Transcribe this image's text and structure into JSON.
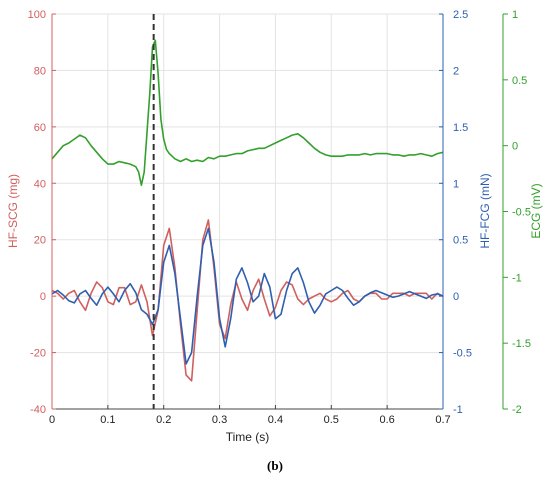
{
  "chart_data": {
    "type": "line",
    "xlabel": "Time (s)",
    "caption": "(b)",
    "xlim": [
      0,
      0.7
    ],
    "x_ticks": [
      "0",
      "0.1",
      "0.2",
      "0.3",
      "0.4",
      "0.5",
      "0.6",
      "0.7"
    ],
    "grid": true,
    "marker_line_x": 0.182,
    "colors": {
      "scg": "#d0605e",
      "fcg": "#2e5fb0",
      "ecg": "#33a02c",
      "marker": "#333333"
    },
    "axes": {
      "scg": {
        "label": "HF-SCG (mg)",
        "ylim": [
          -40,
          100
        ],
        "ticks": [
          "-40",
          "-20",
          "0",
          "20",
          "40",
          "60",
          "80",
          "100"
        ]
      },
      "fcg": {
        "label": "HF-FCG (mN)",
        "ylim": [
          -1,
          2.5
        ],
        "ticks": [
          "-1",
          "-0.5",
          "0",
          "0.5",
          "1",
          "1.5",
          "2",
          "2.5"
        ]
      },
      "ecg": {
        "label": "ECG (mV)",
        "ylim": [
          -2,
          1
        ],
        "ticks": [
          "-2",
          "-1.5",
          "-1",
          "-0.5",
          "0",
          "0.5",
          "1"
        ]
      }
    },
    "series": [
      {
        "axis": "scg",
        "x": [
          0,
          0.01,
          0.02,
          0.03,
          0.04,
          0.05,
          0.06,
          0.07,
          0.08,
          0.09,
          0.1,
          0.11,
          0.12,
          0.13,
          0.14,
          0.15,
          0.16,
          0.17,
          0.18,
          0.19,
          0.2,
          0.21,
          0.22,
          0.23,
          0.24,
          0.25,
          0.26,
          0.27,
          0.28,
          0.29,
          0.3,
          0.31,
          0.32,
          0.33,
          0.34,
          0.35,
          0.36,
          0.37,
          0.38,
          0.39,
          0.4,
          0.41,
          0.42,
          0.43,
          0.44,
          0.45,
          0.46,
          0.47,
          0.48,
          0.49,
          0.5,
          0.51,
          0.52,
          0.53,
          0.54,
          0.55,
          0.56,
          0.57,
          0.58,
          0.59,
          0.6,
          0.61,
          0.62,
          0.63,
          0.64,
          0.65,
          0.66,
          0.67,
          0.68,
          0.69,
          0.7
        ],
        "values": [
          2,
          1,
          -1,
          1,
          2,
          -2,
          -5,
          1,
          5,
          3,
          -2,
          -3,
          3,
          3,
          -3,
          -2,
          4,
          -2,
          -14,
          -5,
          18,
          24,
          10,
          -10,
          -28,
          -30,
          -5,
          20,
          27,
          10,
          -10,
          -15,
          -3,
          5,
          -1,
          -5,
          2,
          6,
          -1,
          -7,
          -4,
          2,
          5,
          4,
          -1,
          -3,
          -1,
          0,
          1,
          -1,
          -2,
          -1,
          1,
          2,
          -1,
          -2,
          0,
          1,
          1,
          -1,
          -1,
          1,
          1,
          1,
          0,
          1,
          1,
          1,
          -1,
          1,
          0
        ]
      },
      {
        "axis": "fcg",
        "x": [
          0,
          0.01,
          0.02,
          0.03,
          0.04,
          0.05,
          0.06,
          0.07,
          0.08,
          0.09,
          0.1,
          0.11,
          0.12,
          0.13,
          0.14,
          0.15,
          0.16,
          0.17,
          0.18,
          0.19,
          0.2,
          0.21,
          0.22,
          0.23,
          0.24,
          0.25,
          0.26,
          0.27,
          0.28,
          0.29,
          0.3,
          0.31,
          0.32,
          0.33,
          0.34,
          0.35,
          0.36,
          0.37,
          0.38,
          0.39,
          0.4,
          0.41,
          0.42,
          0.43,
          0.44,
          0.45,
          0.46,
          0.47,
          0.48,
          0.49,
          0.5,
          0.51,
          0.52,
          0.53,
          0.54,
          0.55,
          0.56,
          0.57,
          0.58,
          0.59,
          0.6,
          0.61,
          0.62,
          0.63,
          0.64,
          0.65,
          0.66,
          0.67,
          0.68,
          0.69,
          0.7
        ],
        "values": [
          0.02,
          0.05,
          0.01,
          -0.04,
          -0.06,
          0.02,
          0.05,
          -0.02,
          -0.08,
          0.02,
          0.08,
          0.02,
          -0.05,
          0.05,
          0.11,
          0.03,
          -0.12,
          -0.16,
          -0.25,
          -0.12,
          0.3,
          0.45,
          0.2,
          -0.2,
          -0.6,
          -0.5,
          0.0,
          0.45,
          0.6,
          0.3,
          -0.2,
          -0.45,
          -0.2,
          0.15,
          0.25,
          0.12,
          -0.05,
          0.0,
          0.2,
          0.08,
          -0.2,
          -0.16,
          0.05,
          0.2,
          0.25,
          0.12,
          -0.05,
          -0.15,
          -0.08,
          0.02,
          0.05,
          0.08,
          0.05,
          -0.02,
          -0.08,
          -0.05,
          0.0,
          0.03,
          0.05,
          0.03,
          0.01,
          -0.01,
          0.0,
          0.02,
          0.04,
          0.02,
          0.0,
          -0.02,
          0.01,
          0.02,
          0.0
        ]
      },
      {
        "axis": "ecg",
        "x": [
          0,
          0.01,
          0.02,
          0.03,
          0.04,
          0.05,
          0.06,
          0.07,
          0.08,
          0.09,
          0.1,
          0.11,
          0.12,
          0.13,
          0.14,
          0.15,
          0.155,
          0.16,
          0.165,
          0.17,
          0.175,
          0.18,
          0.185,
          0.19,
          0.195,
          0.2,
          0.205,
          0.21,
          0.22,
          0.23,
          0.24,
          0.25,
          0.26,
          0.27,
          0.28,
          0.29,
          0.3,
          0.31,
          0.32,
          0.33,
          0.34,
          0.35,
          0.36,
          0.37,
          0.38,
          0.39,
          0.4,
          0.41,
          0.42,
          0.43,
          0.44,
          0.45,
          0.46,
          0.47,
          0.48,
          0.49,
          0.5,
          0.51,
          0.52,
          0.53,
          0.54,
          0.55,
          0.56,
          0.57,
          0.58,
          0.59,
          0.6,
          0.61,
          0.62,
          0.63,
          0.64,
          0.65,
          0.66,
          0.67,
          0.68,
          0.69,
          0.7
        ],
        "values": [
          -0.1,
          -0.05,
          0.0,
          0.02,
          0.05,
          0.08,
          0.06,
          0.0,
          -0.05,
          -0.1,
          -0.14,
          -0.14,
          -0.12,
          -0.13,
          -0.14,
          -0.16,
          -0.2,
          -0.3,
          -0.2,
          0.1,
          0.4,
          0.75,
          0.8,
          0.55,
          0.2,
          0.05,
          -0.03,
          -0.06,
          -0.1,
          -0.12,
          -0.1,
          -0.12,
          -0.11,
          -0.12,
          -0.09,
          -0.1,
          -0.08,
          -0.08,
          -0.07,
          -0.06,
          -0.06,
          -0.04,
          -0.03,
          -0.02,
          -0.02,
          0.0,
          0.02,
          0.04,
          0.06,
          0.08,
          0.09,
          0.06,
          0.02,
          -0.02,
          -0.05,
          -0.07,
          -0.08,
          -0.08,
          -0.08,
          -0.07,
          -0.07,
          -0.07,
          -0.06,
          -0.07,
          -0.06,
          -0.06,
          -0.06,
          -0.07,
          -0.07,
          -0.08,
          -0.07,
          -0.07,
          -0.06,
          -0.07,
          -0.08,
          -0.06,
          -0.05
        ]
      }
    ]
  }
}
